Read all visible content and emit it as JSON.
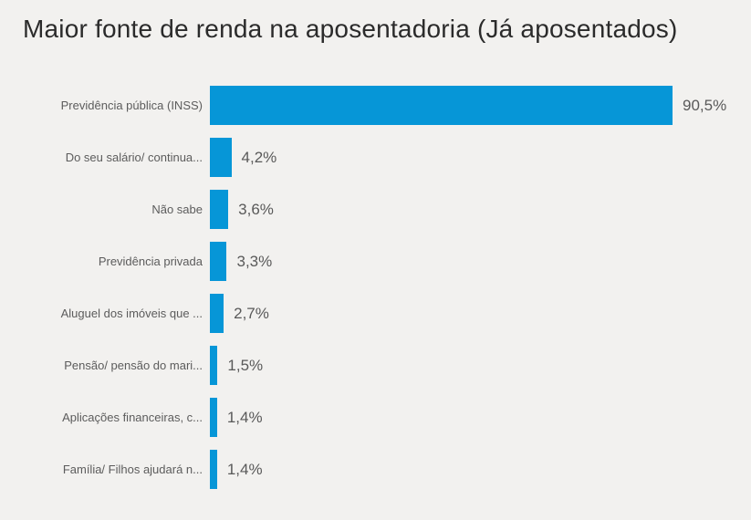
{
  "title": "Maior fonte de renda na aposentadoria (Já aposentados)",
  "colors": {
    "background": "#f2f1ef",
    "bar": "#0696d7",
    "category_label": "#5c5c5c",
    "value_label": "#595959",
    "title": "#2b2b2b"
  },
  "chart_data": {
    "type": "bar",
    "orientation": "horizontal",
    "title": "Maior fonte de renda na aposentadoria (Já aposentados)",
    "categories": [
      "Previdência pública (INSS)",
      "Do seu salário/ continua...",
      "Não sabe",
      "Previdência privada",
      "Aluguel dos imóveis que ...",
      "Pensão/ pensão do mari...",
      "Aplicações financeiras, c...",
      "Família/ Filhos ajudará n..."
    ],
    "values": [
      90.5,
      4.2,
      3.6,
      3.3,
      2.7,
      1.5,
      1.4,
      1.4
    ],
    "value_labels": [
      "90,5%",
      "4,2%",
      "3,6%",
      "3,3%",
      "2,7%",
      "1,5%",
      "1,4%",
      "1,4%"
    ],
    "unit": "%",
    "xlim": [
      0,
      100
    ],
    "grid": false,
    "legend": false,
    "data_labels": "outside-end"
  }
}
